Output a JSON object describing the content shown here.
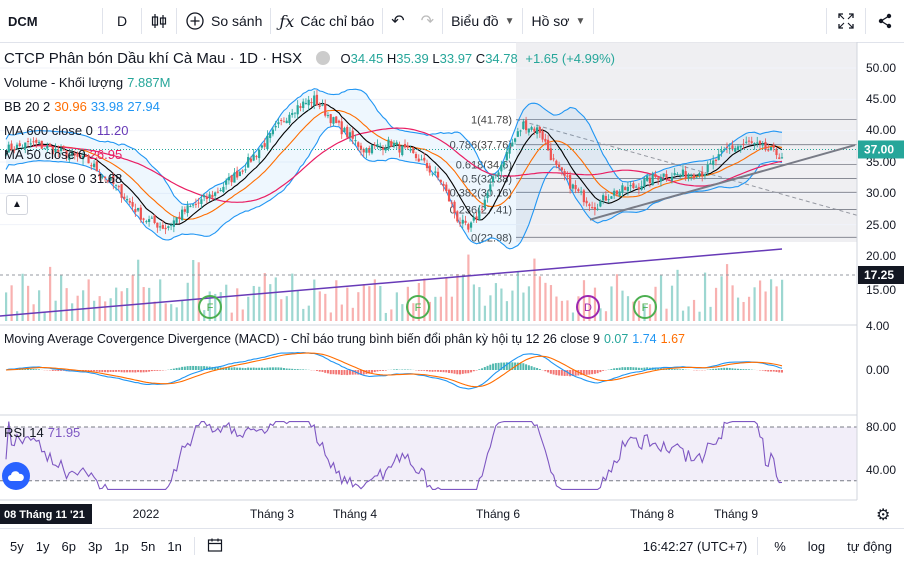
{
  "toolbar": {
    "symbol": "DCM",
    "interval": "D",
    "compare_label": "So sánh",
    "indicators_label": "Các chỉ báo",
    "chart_label": "Biểu đồ",
    "profile_label": "Hồ sơ"
  },
  "header": {
    "title": "CTCP Phân bón Dầu khí Cà Mau · 1D · HSX",
    "o_label": "O",
    "o": "34.45",
    "h_label": "H",
    "h": "35.39",
    "l_label": "L",
    "l": "33.97",
    "c_label": "C",
    "c": "34.78",
    "change": "+1.65 (+4.99%)"
  },
  "legends": {
    "volume_label": "Volume - Khối lượng",
    "volume_value": "7.887M",
    "bb_label": "BB 20 2",
    "bb_mid": "30.96",
    "bb_up": "33.98",
    "bb_low": "27.94",
    "ma600_label": "MA 600 close 0",
    "ma600_value": "11.20",
    "ma50_label": "MA 50 close 0",
    "ma50_value": "26.95",
    "ma10_label": "MA 10 close 0",
    "ma10_value": "31.68",
    "macd_label": "Moving Average Covergence Divergence (MACD) - Chỉ báo trung bình biến đổi phân kỳ hội tụ 12 26 close 9",
    "macd_hist": "0.07",
    "macd_line": "1.74",
    "macd_signal": "1.67",
    "rsi_label": "RSI 14",
    "rsi_value": "71.95"
  },
  "colors": {
    "up": "#26a69a",
    "down": "#ef5350",
    "bb": "#2196f3",
    "ma600": "#673ab7",
    "ma50": "#e91e63",
    "ma10": "#000000",
    "rsi": "#7e57c2",
    "macd": "#2196f3",
    "signal": "#ff6d00"
  },
  "chart_data": {
    "type": "candlestick",
    "x_ticks": [
      "2022",
      "Tháng 3",
      "Tháng 4",
      "Tháng 6",
      "Tháng 8",
      "Tháng 9"
    ],
    "price_axis": [
      "50.00",
      "45.00",
      "40.00",
      "35.00",
      "30.00",
      "25.00",
      "20.00",
      "15.00",
      "4.00"
    ],
    "last_price_tag": "37.00",
    "volume_tag": "17.25",
    "date_tag": "08 Tháng 11 '21",
    "fib_labels": [
      "1(41.78)",
      "0.786(37.76)",
      "0.618(34.6)",
      "0.5(32.38)",
      "0.382(30.16)",
      "0.236(27.41)",
      "0(22.98)"
    ],
    "fib_values": [
      41.78,
      37.76,
      34.6,
      32.38,
      30.16,
      27.41,
      22.98
    ],
    "price_anchors": [
      [
        0,
        37
      ],
      [
        10,
        38
      ],
      [
        20,
        36.5
      ],
      [
        30,
        35
      ],
      [
        40,
        31
      ],
      [
        50,
        26
      ],
      [
        58,
        24.5
      ],
      [
        66,
        27.5
      ],
      [
        76,
        30
      ],
      [
        86,
        34
      ],
      [
        96,
        39
      ],
      [
        104,
        43.5
      ],
      [
        112,
        45
      ],
      [
        120,
        41
      ],
      [
        130,
        37
      ],
      [
        140,
        38
      ],
      [
        150,
        35.5
      ],
      [
        158,
        32
      ],
      [
        164,
        26
      ],
      [
        168,
        24
      ],
      [
        172,
        27
      ],
      [
        178,
        33
      ],
      [
        184,
        38
      ],
      [
        188,
        41
      ],
      [
        194,
        40
      ],
      [
        200,
        34
      ],
      [
        208,
        30
      ],
      [
        214,
        28
      ],
      [
        220,
        30
      ],
      [
        228,
        31
      ],
      [
        238,
        33
      ],
      [
        246,
        33
      ],
      [
        254,
        33.5
      ],
      [
        262,
        37
      ],
      [
        270,
        38
      ],
      [
        276,
        37
      ],
      [
        282,
        36
      ]
    ],
    "macd_axis": [
      "0.00"
    ],
    "rsi_axis": [
      "80.00",
      "40.00"
    ],
    "event_markers": [
      "F",
      "F",
      "D",
      "F"
    ]
  },
  "bottom": {
    "ranges": [
      "5y",
      "1y",
      "6p",
      "3p",
      "1p",
      "5n",
      "1n"
    ],
    "time": "16:42:27 (UTC+7)",
    "percent": "%",
    "log": "log",
    "auto": "tự động"
  }
}
